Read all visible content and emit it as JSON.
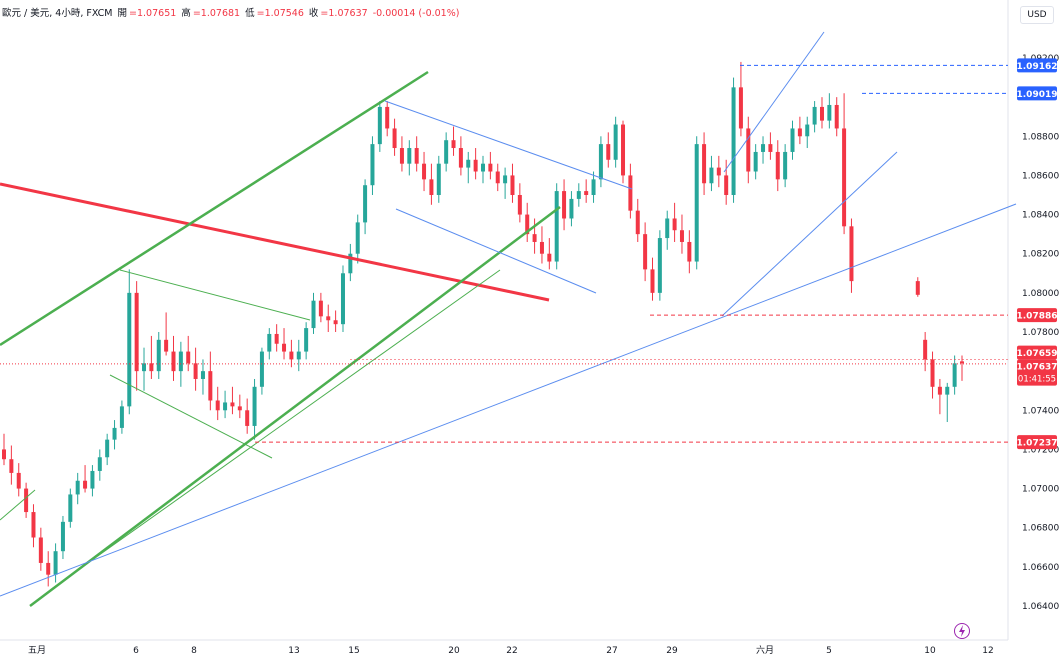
{
  "header": {
    "symbol": "歐元 / 美元, 4小時, FXCM",
    "open_label": "開",
    "open": "=1.07651",
    "high_label": "高",
    "high": "=1.07681",
    "low_label": "低",
    "low": "=1.07546",
    "close_label": "收",
    "close": "=1.07637",
    "change": "-0.00014 (-0.01%)",
    "currency": "USD"
  },
  "colors": {
    "up": "#26a69a",
    "down": "#f23645",
    "support_red": "#f23645",
    "trend_green": "#4caf50",
    "channel_blue": "#5b8def",
    "price_label_blue": "#2962ff"
  },
  "chart_data": {
    "type": "candlestick",
    "timeframe": "4H",
    "ylim": [
      1.0628,
      1.0935
    ],
    "yticks": [
      "1.09200",
      "1.08800",
      "1.08600",
      "1.08400",
      "1.08200",
      "1.08000",
      "1.07800",
      "1.07400",
      "1.07200",
      "1.07000",
      "1.06800",
      "1.06600",
      "1.06400"
    ],
    "xticks": [
      "五月",
      "6",
      "8",
      "13",
      "15",
      "20",
      "22",
      "27",
      "29",
      "六月",
      "5",
      "10",
      "12"
    ],
    "price_labels": [
      {
        "value": "1.09162",
        "kind": "blue"
      },
      {
        "value": "1.09019",
        "kind": "blue"
      },
      {
        "value": "1.07886",
        "kind": "red"
      },
      {
        "value": "1.07659",
        "kind": "red"
      },
      {
        "value": "1.07637",
        "kind": "red"
      },
      {
        "value": "01:41:55",
        "kind": "red"
      },
      {
        "value": "1.07237",
        "kind": "red"
      }
    ],
    "candles": [
      [
        1.072,
        1.0728,
        1.0712,
        1.0715
      ],
      [
        1.0715,
        1.0722,
        1.0702,
        1.0708
      ],
      [
        1.0708,
        1.0713,
        1.0696,
        1.07
      ],
      [
        1.07,
        1.0703,
        1.0685,
        1.0688
      ],
      [
        1.0688,
        1.0692,
        1.067,
        1.0675
      ],
      [
        1.0675,
        1.068,
        1.0658,
        1.0662
      ],
      [
        1.0662,
        1.0668,
        1.065,
        1.0656
      ],
      [
        1.0656,
        1.0672,
        1.0652,
        1.0668
      ],
      [
        1.0668,
        1.0686,
        1.0664,
        1.0683
      ],
      [
        1.0683,
        1.07,
        1.068,
        1.0697
      ],
      [
        1.0697,
        1.0708,
        1.0692,
        1.0704
      ],
      [
        1.0704,
        1.0712,
        1.0698,
        1.07
      ],
      [
        1.07,
        1.0712,
        1.0696,
        1.0709
      ],
      [
        1.0709,
        1.072,
        1.0704,
        1.0716
      ],
      [
        1.0716,
        1.0728,
        1.0712,
        1.0725
      ],
      [
        1.0725,
        1.0735,
        1.072,
        1.0731
      ],
      [
        1.0731,
        1.0745,
        1.0728,
        1.0742
      ],
      [
        1.0742,
        1.0812,
        1.0738,
        1.08
      ],
      [
        1.08,
        1.0806,
        1.075,
        1.076
      ],
      [
        1.076,
        1.0772,
        1.075,
        1.0764
      ],
      [
        1.0764,
        1.0778,
        1.0756,
        1.076
      ],
      [
        1.076,
        1.078,
        1.0756,
        1.0776
      ],
      [
        1.0776,
        1.079,
        1.0768,
        1.077
      ],
      [
        1.077,
        1.0778,
        1.0755,
        1.076
      ],
      [
        1.076,
        1.0775,
        1.0752,
        1.077
      ],
      [
        1.077,
        1.0778,
        1.076,
        1.0764
      ],
      [
        1.0764,
        1.0772,
        1.075,
        1.0756
      ],
      [
        1.0756,
        1.0766,
        1.0748,
        1.076
      ],
      [
        1.076,
        1.077,
        1.074,
        1.0745
      ],
      [
        1.0745,
        1.0752,
        1.0735,
        1.074
      ],
      [
        1.074,
        1.075,
        1.0736,
        1.0744
      ],
      [
        1.0744,
        1.0752,
        1.0738,
        1.0742
      ],
      [
        1.0742,
        1.0748,
        1.0736,
        1.074
      ],
      [
        1.074,
        1.0746,
        1.0728,
        1.0732
      ],
      [
        1.0732,
        1.0756,
        1.0725,
        1.0752
      ],
      [
        1.0752,
        1.0772,
        1.0748,
        1.077
      ],
      [
        1.077,
        1.0782,
        1.0766,
        1.0779
      ],
      [
        1.0779,
        1.0784,
        1.077,
        1.0774
      ],
      [
        1.0774,
        1.0782,
        1.0766,
        1.077
      ],
      [
        1.077,
        1.0776,
        1.0762,
        1.0766
      ],
      [
        1.0766,
        1.0776,
        1.076,
        1.077
      ],
      [
        1.077,
        1.0785,
        1.0766,
        1.0782
      ],
      [
        1.0782,
        1.08,
        1.0779,
        1.0796
      ],
      [
        1.0796,
        1.08,
        1.0785,
        1.0788
      ],
      [
        1.0788,
        1.0794,
        1.078,
        1.0786
      ],
      [
        1.0786,
        1.0791,
        1.078,
        1.0784
      ],
      [
        1.0784,
        1.0814,
        1.078,
        1.081
      ],
      [
        1.081,
        1.0825,
        1.0806,
        1.082
      ],
      [
        1.082,
        1.084,
        1.0815,
        1.0836
      ],
      [
        1.0836,
        1.0858,
        1.083,
        1.0855
      ],
      [
        1.0855,
        1.088,
        1.085,
        1.0876
      ],
      [
        1.0876,
        1.0898,
        1.0872,
        1.0895
      ],
      [
        1.0895,
        1.0898,
        1.088,
        1.0884
      ],
      [
        1.0884,
        1.0889,
        1.087,
        1.0874
      ],
      [
        1.0874,
        1.088,
        1.0862,
        1.0866
      ],
      [
        1.0866,
        1.0878,
        1.086,
        1.0874
      ],
      [
        1.0874,
        1.088,
        1.0862,
        1.0866
      ],
      [
        1.0866,
        1.0872,
        1.0852,
        1.0858
      ],
      [
        1.0858,
        1.0866,
        1.0845,
        1.085
      ],
      [
        1.085,
        1.087,
        1.0846,
        1.0866
      ],
      [
        1.0866,
        1.0882,
        1.0862,
        1.0878
      ],
      [
        1.0878,
        1.0885,
        1.087,
        1.0874
      ],
      [
        1.0874,
        1.088,
        1.086,
        1.0864
      ],
      [
        1.0864,
        1.0872,
        1.0856,
        1.0868
      ],
      [
        1.0868,
        1.0874,
        1.0858,
        1.0862
      ],
      [
        1.0862,
        1.087,
        1.0856,
        1.0866
      ],
      [
        1.0866,
        1.0872,
        1.0858,
        1.0862
      ],
      [
        1.0862,
        1.0866,
        1.0852,
        1.0856
      ],
      [
        1.0856,
        1.0864,
        1.0848,
        1.086
      ],
      [
        1.086,
        1.0866,
        1.0846,
        1.085
      ],
      [
        1.085,
        1.0856,
        1.0836,
        1.084
      ],
      [
        1.084,
        1.0846,
        1.0826,
        1.083
      ],
      [
        1.083,
        1.0838,
        1.082,
        1.0826
      ],
      [
        1.0826,
        1.0834,
        1.0815,
        1.082
      ],
      [
        1.082,
        1.0828,
        1.0812,
        1.0816
      ],
      [
        1.0816,
        1.0856,
        1.0812,
        1.0852
      ],
      [
        1.0852,
        1.0858,
        1.0832,
        1.0838
      ],
      [
        1.0838,
        1.0852,
        1.0834,
        1.0848
      ],
      [
        1.0848,
        1.0856,
        1.0844,
        1.0852
      ],
      [
        1.0852,
        1.0858,
        1.0846,
        1.085
      ],
      [
        1.085,
        1.0862,
        1.0846,
        1.0858
      ],
      [
        1.0858,
        1.088,
        1.0854,
        1.0876
      ],
      [
        1.0876,
        1.0882,
        1.0864,
        1.0868
      ],
      [
        1.0868,
        1.089,
        1.0864,
        1.0886
      ],
      [
        1.0886,
        1.0888,
        1.0856,
        1.086
      ],
      [
        1.086,
        1.0866,
        1.0838,
        1.0842
      ],
      [
        1.0842,
        1.0848,
        1.0826,
        1.083
      ],
      [
        1.083,
        1.0836,
        1.0806,
        1.0812
      ],
      [
        1.0812,
        1.0818,
        1.0796,
        1.08
      ],
      [
        1.08,
        1.0832,
        1.0796,
        1.0828
      ],
      [
        1.0828,
        1.0842,
        1.0822,
        1.0838
      ],
      [
        1.0838,
        1.0846,
        1.0826,
        1.0832
      ],
      [
        1.0832,
        1.084,
        1.082,
        1.0826
      ],
      [
        1.0826,
        1.0832,
        1.081,
        1.0816
      ],
      [
        1.0816,
        1.088,
        1.0812,
        1.0876
      ],
      [
        1.0876,
        1.0882,
        1.085,
        1.0856
      ],
      [
        1.0856,
        1.087,
        1.0852,
        1.0864
      ],
      [
        1.0864,
        1.087,
        1.0854,
        1.086
      ],
      [
        1.086,
        1.0868,
        1.0845,
        1.085
      ],
      [
        1.085,
        1.091,
        1.0846,
        1.0905
      ],
      [
        1.0905,
        1.0918,
        1.088,
        1.0884
      ],
      [
        1.0884,
        1.089,
        1.0856,
        1.0862
      ],
      [
        1.0862,
        1.0876,
        1.0858,
        1.0872
      ],
      [
        1.0872,
        1.088,
        1.0866,
        1.0876
      ],
      [
        1.0876,
        1.0882,
        1.0868,
        1.0872
      ],
      [
        1.0872,
        1.0878,
        1.0852,
        1.0858
      ],
      [
        1.0858,
        1.0876,
        1.0854,
        1.0872
      ],
      [
        1.0872,
        1.0888,
        1.0868,
        1.0884
      ],
      [
        1.0884,
        1.089,
        1.0876,
        1.088
      ],
      [
        1.088,
        1.089,
        1.0874,
        1.0886
      ],
      [
        1.0886,
        1.0898,
        1.0882,
        1.0895
      ],
      [
        1.0895,
        1.09,
        1.0884,
        1.0888
      ],
      [
        1.0888,
        1.0902,
        1.0884,
        1.0896
      ],
      [
        1.0896,
        1.09,
        1.088,
        1.0884
      ],
      [
        1.0884,
        1.0902,
        1.083,
        1.0834
      ],
      [
        1.0834,
        1.0838,
        1.08,
        1.0806
      ],
      [
        1.0806,
        1.0808,
        1.0798,
        1.0799
      ],
      [
        1.0776,
        1.078,
        1.076,
        1.0766
      ],
      [
        1.0766,
        1.077,
        1.0746,
        1.0752
      ],
      [
        1.0752,
        1.0756,
        1.0738,
        1.0748
      ],
      [
        1.0748,
        1.0754,
        1.0734,
        1.0752
      ],
      [
        1.0752,
        1.0768,
        1.0748,
        1.0764
      ],
      [
        1.0765,
        1.0768,
        1.0755,
        1.0764
      ]
    ]
  }
}
